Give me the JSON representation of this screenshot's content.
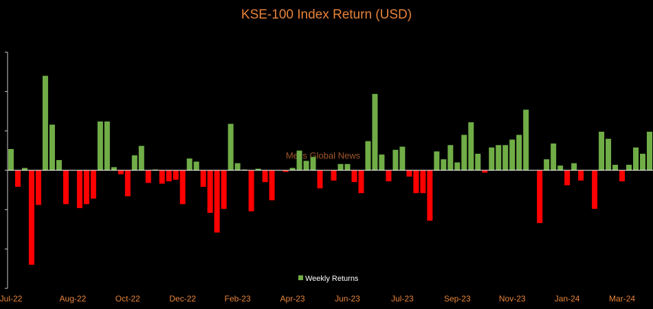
{
  "chart_data": {
    "type": "bar",
    "title": "KSE-100 Index Return (USD)",
    "watermark": "Metis Global News",
    "xlabel": "",
    "ylabel": "",
    "x_tick_labels": [
      "Jul-22",
      "Aug-22",
      "Oct-22",
      "Dec-22",
      "Feb-23",
      "Apr-23",
      "Jun-23",
      "Jul-23",
      "Sep-23",
      "Nov-23",
      "Jan-24",
      "Mar-24"
    ],
    "x_tick_bar_index": [
      0,
      9,
      17,
      25,
      33,
      41,
      49,
      57,
      65,
      73,
      81,
      89
    ],
    "ylim": [
      -0.15,
      0.15
    ],
    "y_tick_step": 0.05,
    "y_tick_labels_visible": false,
    "grid": false,
    "legend": "bottom-center",
    "positive_color": "#70ad47",
    "negative_color": "#ff0000",
    "series": [
      {
        "name": "Weekly Returns",
        "values": [
          0.027,
          -0.021,
          0.003,
          -0.12,
          -0.044,
          0.12,
          0.058,
          0.013,
          -0.043,
          0.0,
          -0.048,
          -0.043,
          -0.036,
          0.062,
          0.062,
          0.004,
          -0.005,
          -0.033,
          0.019,
          0.031,
          -0.016,
          0.001,
          -0.017,
          -0.014,
          -0.012,
          -0.043,
          0.015,
          0.011,
          -0.021,
          -0.054,
          -0.079,
          -0.049,
          0.059,
          0.009,
          0.001,
          -0.052,
          0.002,
          -0.015,
          -0.038,
          0.0,
          -0.002,
          0.003,
          0.025,
          0.012,
          0.017,
          -0.023,
          0.0,
          -0.013,
          0.008,
          0.008,
          -0.015,
          -0.029,
          0.037,
          0.097,
          0.02,
          -0.014,
          0.026,
          0.03,
          -0.008,
          -0.029,
          -0.029,
          -0.064,
          0.024,
          0.014,
          0.032,
          0.01,
          0.045,
          0.061,
          0.021,
          -0.003,
          0.029,
          0.032,
          0.032,
          0.039,
          0.045,
          0.077,
          0.0,
          -0.067,
          0.014,
          0.034,
          0.006,
          -0.019,
          0.009,
          -0.013,
          0.0,
          -0.049,
          0.049,
          0.04,
          0.007,
          -0.014,
          0.007,
          0.029,
          0.021,
          0.049
        ]
      }
    ]
  }
}
